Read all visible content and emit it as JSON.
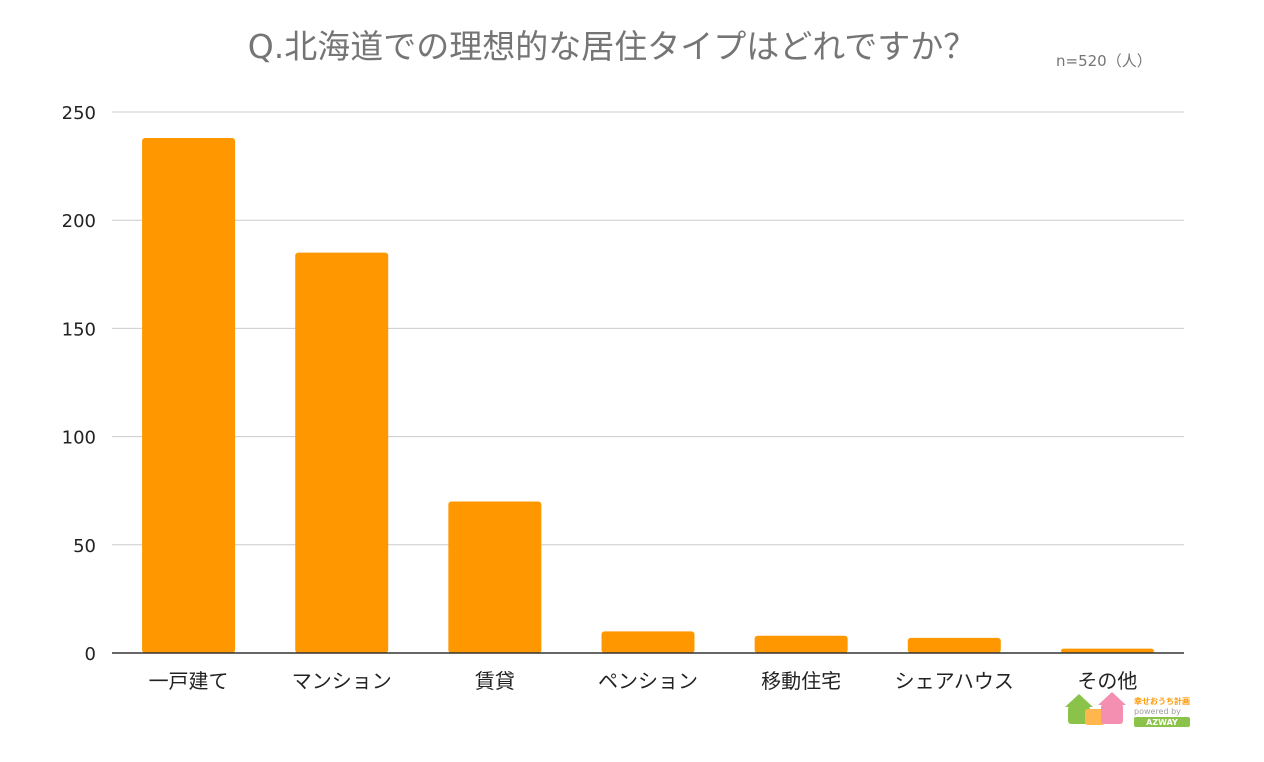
{
  "colors": {
    "bar": "#ff9800",
    "grid": "#cccccc",
    "axis": "#333333",
    "title": "#757575",
    "logo_green": "#8bc34a",
    "logo_pink": "#f48fb1",
    "logo_orange": "#ffb74d"
  },
  "logo": {
    "line1": "幸せおうち計画",
    "line2": "powered by",
    "line3": "AZWAY"
  },
  "chart_data": {
    "type": "bar",
    "title": "Q.北海道での理想的な居住タイプはどれですか？",
    "subtitle": "n=520（人）",
    "xlabel": "",
    "ylabel": "",
    "categories": [
      "一戸建て",
      "マンション",
      "賃貸",
      "ペンション",
      "移動住宅",
      "シェアハウス",
      "その他"
    ],
    "values": [
      238,
      185,
      70,
      10,
      8,
      7,
      2
    ],
    "ylim": [
      0,
      250
    ],
    "yticks": [
      0,
      50,
      100,
      150,
      200,
      250
    ],
    "grid": true,
    "legend": "none"
  }
}
